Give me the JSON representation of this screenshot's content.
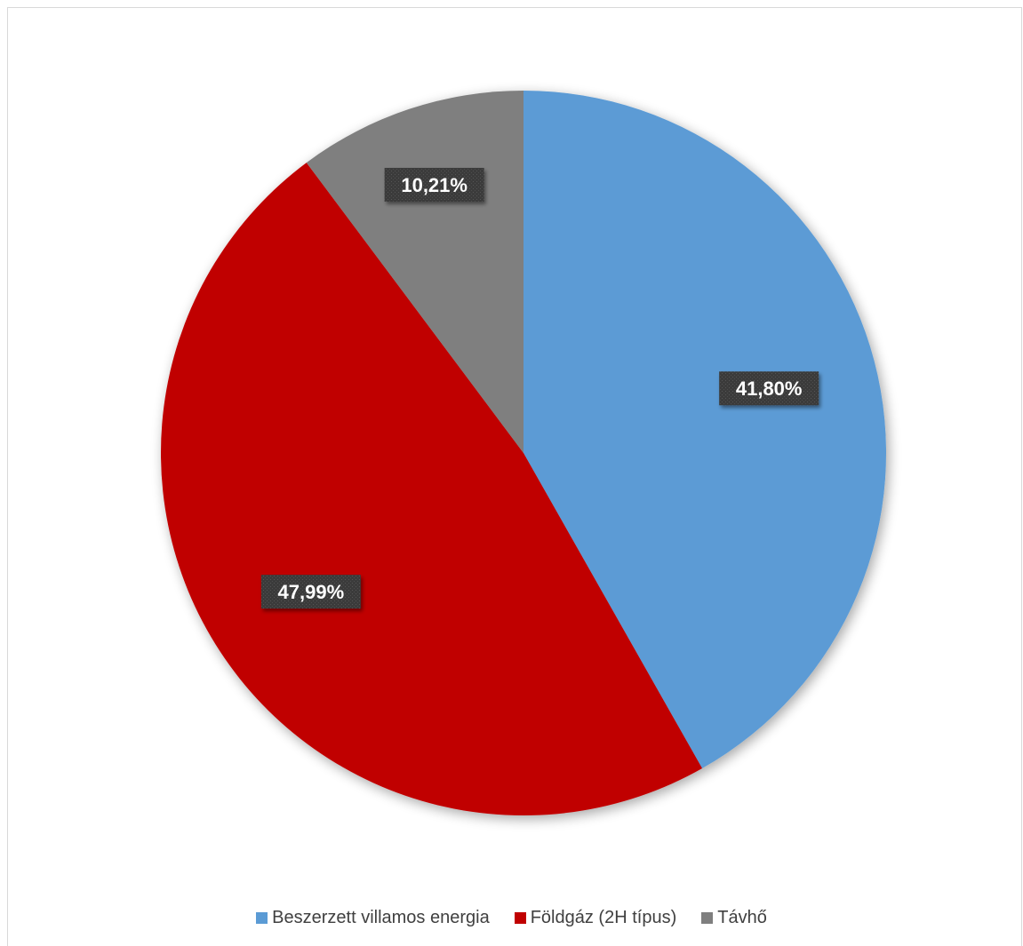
{
  "chart_data": {
    "type": "pie",
    "title": "",
    "slices": [
      {
        "label": "Beszerzett villamos energia",
        "value": 41.8,
        "display": "41,80%",
        "color": "#5b9bd5"
      },
      {
        "label": "Földgáz (2H típus)",
        "value": 47.99,
        "display": "47,99%",
        "color": "#c00000"
      },
      {
        "label": "Távhő",
        "value": 10.21,
        "display": "10,21%",
        "color": "#7f7f7f"
      }
    ],
    "start_angle": "12 o'clock",
    "direction": "clockwise",
    "legend_position": "bottom",
    "data_label_style": "white bold text on dark textured box"
  }
}
